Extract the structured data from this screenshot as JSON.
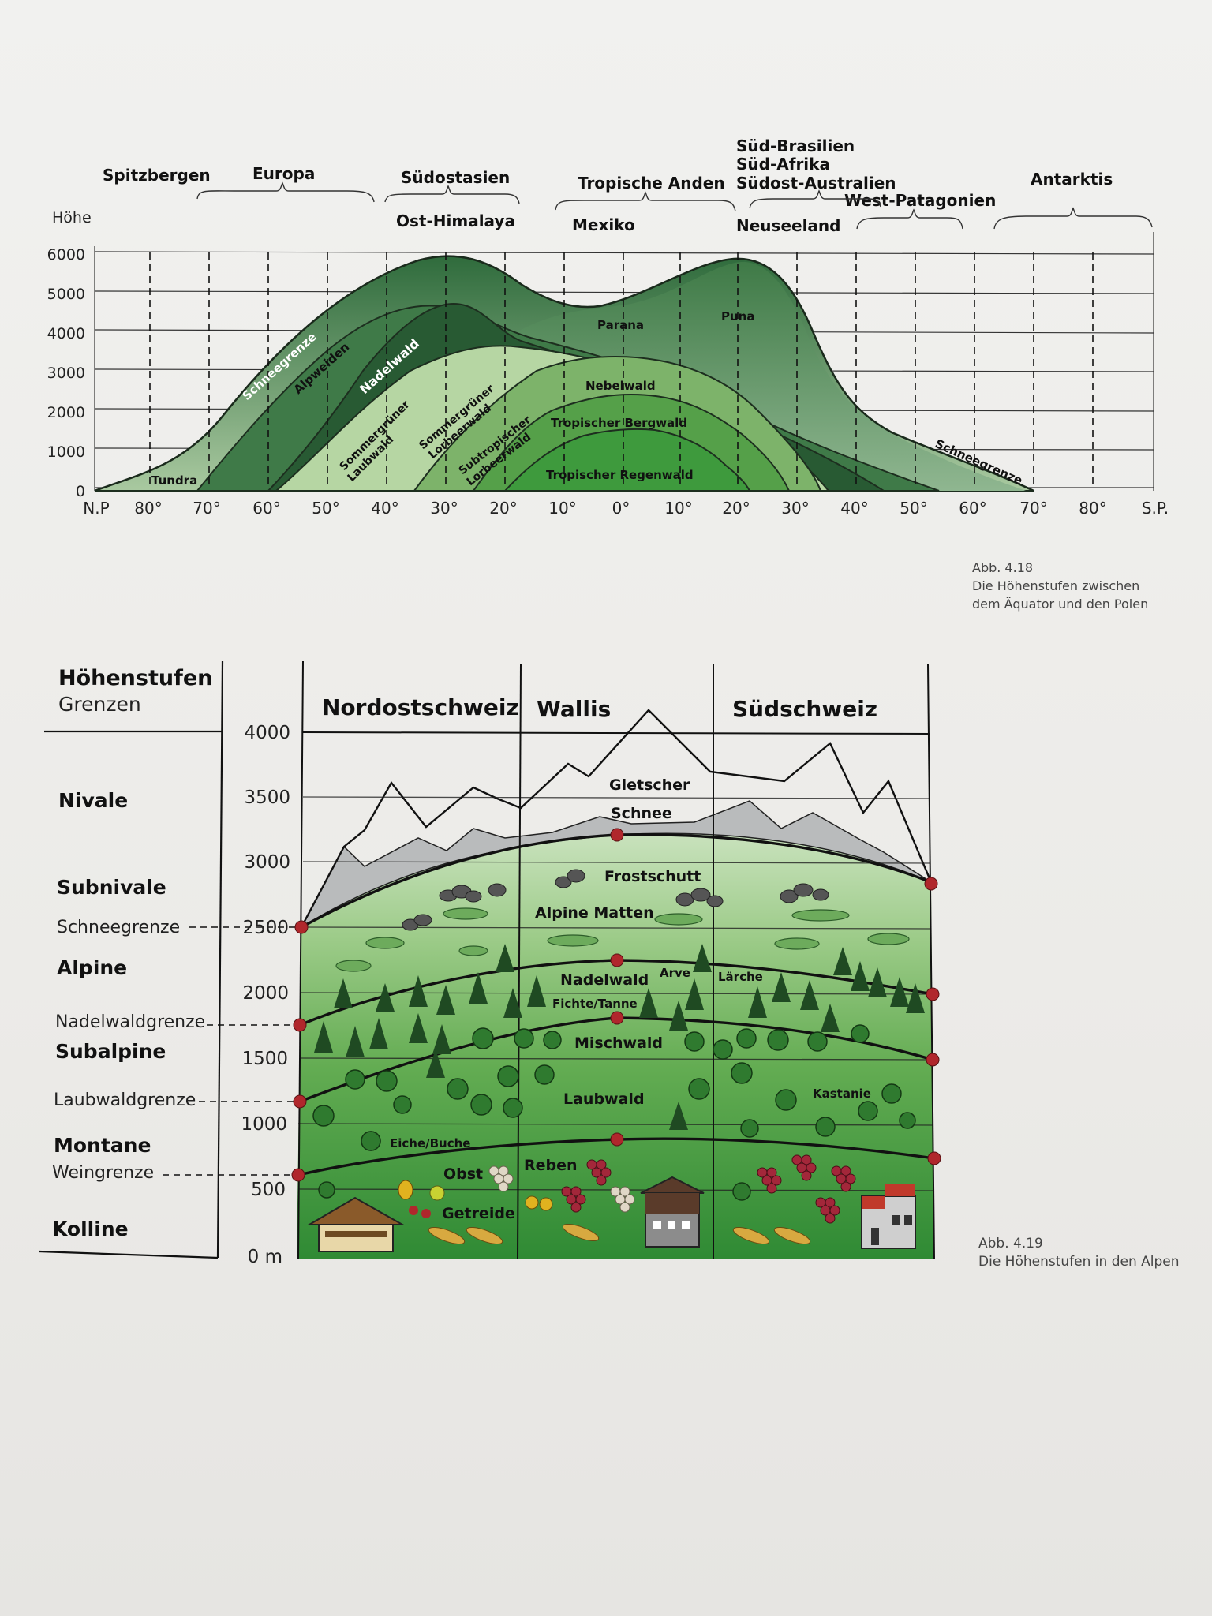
{
  "fig1": {
    "y_axis_label": "Höhe",
    "y_ticks": [
      "0",
      "1000",
      "2000",
      "3000",
      "4000",
      "5000",
      "6000"
    ],
    "x_ticks": [
      "N.P",
      "80°",
      "70°",
      "60°",
      "50°",
      "40°",
      "30°",
      "20°",
      "10°",
      "0°",
      "10°",
      "20°",
      "30°",
      "40°",
      "50°",
      "60°",
      "70°",
      "80°",
      "S.P."
    ],
    "regions": {
      "spitzbergen": "Spitzbergen",
      "europa": "Europa",
      "suedostasien": "Südostasien",
      "ost_himalaya": "Ost-Himalaya",
      "tropische_anden": "Tropische Anden",
      "mexiko": "Mexiko",
      "sued_brasilien": "Süd-Brasilien",
      "sued_afrika": "Süd-Afrika",
      "suedost_australien": "Südost-Australien",
      "west_patagonien": "West-Patagonien",
      "neuseeland": "Neuseeland",
      "antarktis": "Antarktis"
    },
    "zones": {
      "tundra": "Tundra",
      "schneegrenze_left": "Schneegrenze",
      "alpweiden": "Alpweiden",
      "nadelwald": "Nadelwald",
      "sommergruener_laubwald_1": "Sommergrüner",
      "sommergruener_laubwald_2": "Laubwald",
      "sommergruener_lorbeerwald_1": "Sommergrüner",
      "sommergruener_lorbeerwald_2": "Lorbeerwald",
      "subtropischer_lorbeerwald_1": "Subtropischer",
      "subtropischer_lorbeerwald_2": "Lorbeerwald",
      "parana": "Parana",
      "puna": "Puna",
      "nebelwald": "Nebelwald",
      "tropischer_bergwald": "Tropischer Bergwald",
      "tropischer_regenwald": "Tropischer Regenwald",
      "schneegrenze_right": "Schneegrenze"
    },
    "caption": [
      "Abb. 4.18",
      "Die Höhenstufen zwischen",
      "dem Äquator und den Polen"
    ]
  },
  "fig2": {
    "header_title": "Höhenstufen",
    "header_subtitle": "Grenzen",
    "columns": [
      "Nordostschweiz",
      "Wallis",
      "Südschweiz"
    ],
    "y_ticks": [
      "0 m",
      "500",
      "1000",
      "1500",
      "2000",
      "2500",
      "3000",
      "3500",
      "4000"
    ],
    "stages": {
      "nivale": "Nivale",
      "subnivale": "Subnivale",
      "alpine": "Alpine",
      "subalpine": "Subalpine",
      "montane": "Montane",
      "kolline": "Kolline"
    },
    "limits": {
      "schneegrenze": "Schneegrenze",
      "nadelwaldgrenze": "Nadelwaldgrenze",
      "laubwaldgrenze": "Laubwaldgrenze",
      "weingrenze": "Weingrenze"
    },
    "labels": {
      "gletscher": "Gletscher",
      "schnee": "Schnee",
      "frostschutt": "Frostschutt",
      "alpine_matten": "Alpine Matten",
      "nadelwald": "Nadelwald",
      "arve": "Arve",
      "laerche": "Lärche",
      "fichte_tanne": "Fichte/Tanne",
      "mischwald": "Mischwald",
      "laubwald": "Laubwald",
      "kastanie": "Kastanie",
      "eiche_buche": "Eiche/Buche",
      "obst": "Obst",
      "reben": "Reben",
      "getreide": "Getreide"
    },
    "caption": [
      "Abb. 4.19",
      "Die Höhenstufen in den Alpen"
    ]
  },
  "colors": {
    "dark_green": "#2b5e37",
    "mid_green": "#4f8e4e",
    "light_green": "#a9cf95",
    "bright_green": "#3e9a3d",
    "grey_rock": "#b9bbbc",
    "limit_dot": "#b0272c"
  }
}
